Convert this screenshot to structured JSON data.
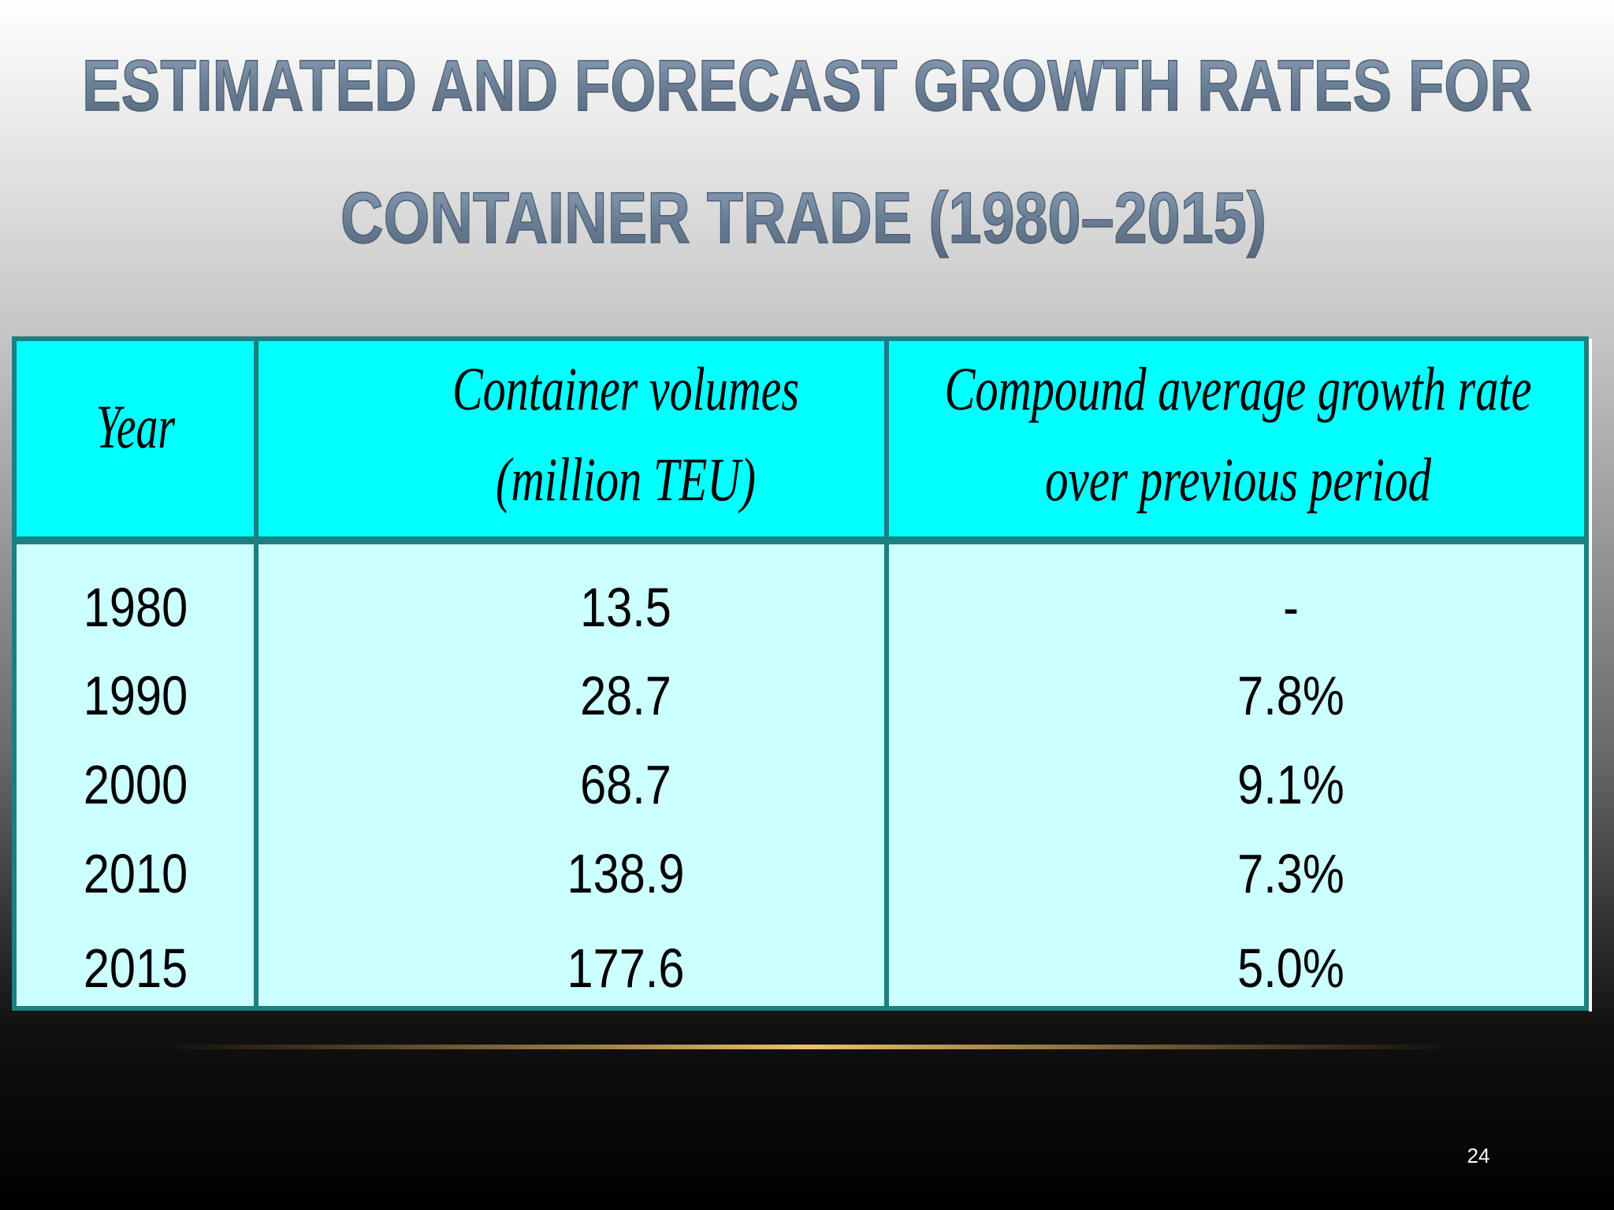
{
  "title": {
    "lines": [
      "ESTIMATED AND FORECAST GROWTH RATES FOR",
      "CONTAINER TRADE (1980–2015)"
    ]
  },
  "table": {
    "header": [
      [
        "Year"
      ],
      [
        "Container volumes",
        "(million TEU)"
      ],
      [
        "Compound average growth rate",
        "over previous period"
      ]
    ],
    "rows": [
      [
        "1980",
        "13.5",
        "-"
      ],
      [
        "1990",
        "28.7",
        "7.8%"
      ],
      [
        "2000",
        "68.7",
        "9.1%"
      ],
      [
        "2010",
        "138.9",
        "7.3%"
      ],
      [
        "2015",
        "177.6",
        "5.0%"
      ]
    ]
  },
  "page_number": "24"
}
